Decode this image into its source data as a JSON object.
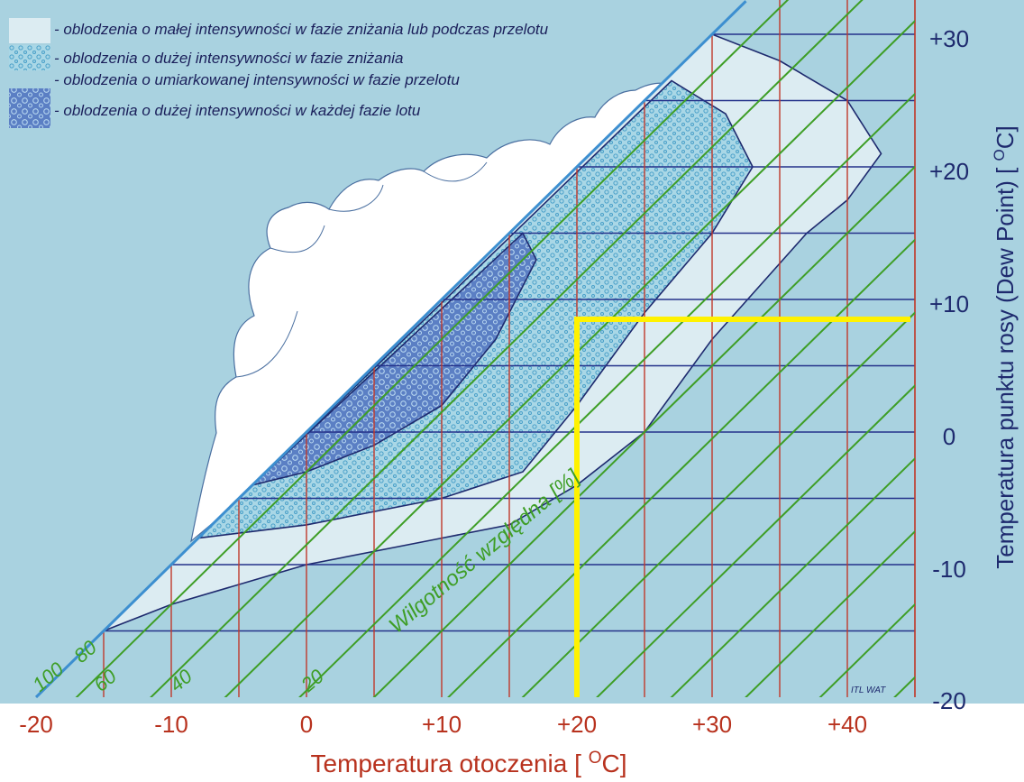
{
  "legend": {
    "items": [
      {
        "key": "light",
        "label": "- oblodzenia o małej intensywności w fazie zniżania lub podczas przelotu",
        "swatch": "plain"
      },
      {
        "key": "descent",
        "label": "- oblodzenia o dużej intensywności w fazie zniżania",
        "swatch": "dots"
      },
      {
        "key": "cruise",
        "label": "- oblodzenia o umiarkowanej intensywności w fazie przelotu",
        "swatch": "dots"
      },
      {
        "key": "severe",
        "label": "- oblodzenia o dużej intensywności w każdej fazie lotu",
        "swatch": "bubbles"
      }
    ]
  },
  "x_axis": {
    "title_main": "Temperatura otoczenia [ ",
    "title_sup": "O",
    "title_end": "C]",
    "ticks": [
      "-20",
      "-10",
      "0",
      "+10",
      "+20",
      "+30",
      "+40"
    ]
  },
  "y_axis": {
    "title_main": "Temperatura punktu rosy (Dew Point) [ ",
    "title_sup": "O",
    "title_end": "C]",
    "ticks": [
      "+30",
      "+20",
      "+10",
      "0",
      "-10",
      "-20"
    ]
  },
  "humidity": {
    "title": "Wilgotność względna [%]",
    "labels": [
      "100",
      "80",
      "60",
      "40",
      "20"
    ]
  },
  "credit": "ITL WAT",
  "colors": {
    "background": "#a9d2e0",
    "light_zone": "#dcecf2",
    "cloud": "#ffffff",
    "dots_fill": "#a9d7e6",
    "dots_color": "#4aa0c9",
    "bubbles_fill": "#5b7fc4",
    "bubbles_color": "#b6d6f0",
    "grid_h": "#24318a",
    "grid_v": "#c0392b",
    "humidity": "#3e9e26",
    "saturation": "#3d8fd0",
    "zone_outline": "#1e2a6e",
    "highlight": "#fff200"
  },
  "chart_data": {
    "type": "diagram",
    "x": {
      "min": -20,
      "max": 45,
      "tick_step": 10,
      "grid_step": 5
    },
    "y": {
      "min": -20,
      "max": 30,
      "tick_step": 10,
      "grid_step": 5
    },
    "humidity_percent": [
      100,
      80,
      60,
      40,
      20
    ],
    "zones": {
      "light": [
        [
          -15,
          -15
        ],
        [
          -10,
          -13
        ],
        [
          0,
          -10
        ],
        [
          10,
          -8
        ],
        [
          15,
          -7
        ],
        [
          20,
          -4
        ],
        [
          25,
          0
        ],
        [
          30,
          7
        ],
        [
          37,
          15
        ],
        [
          40,
          17.5
        ],
        [
          42.5,
          21
        ],
        [
          40,
          25
        ],
        [
          35,
          28
        ],
        [
          30,
          30
        ]
      ],
      "descent": [
        [
          -8,
          -8
        ],
        [
          0,
          -7
        ],
        [
          10,
          -5
        ],
        [
          16,
          -3
        ],
        [
          20,
          2
        ],
        [
          25,
          9
        ],
        [
          30,
          15
        ],
        [
          33,
          20
        ],
        [
          31,
          24
        ],
        [
          27,
          26.5
        ]
      ],
      "severe": [
        [
          -4,
          -4
        ],
        [
          0,
          -3
        ],
        [
          5,
          -1
        ],
        [
          10,
          2
        ],
        [
          14,
          7
        ],
        [
          17,
          13
        ],
        [
          16,
          15
        ]
      ]
    },
    "highlight": {
      "from_x": 20,
      "dew_point": 8.5
    }
  }
}
